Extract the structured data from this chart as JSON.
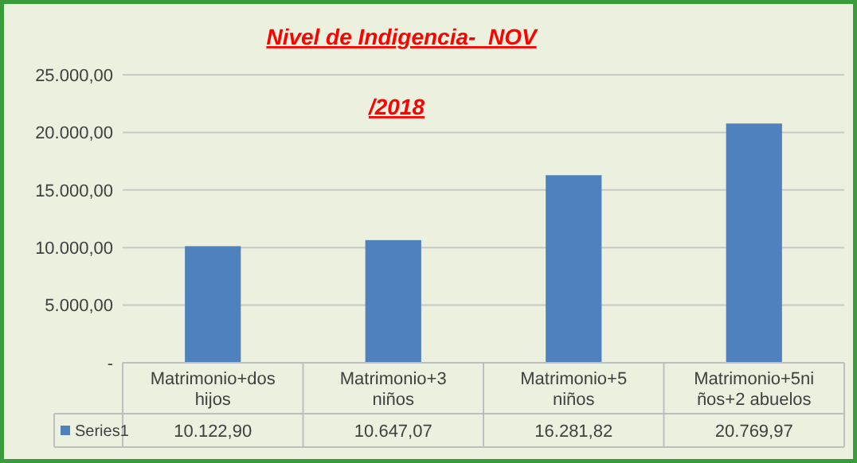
{
  "chart_data": {
    "type": "bar",
    "title": "Nivel de Indigencia-  NOV\n/2018",
    "categories": [
      "Matrimonio+dos hijos",
      "Matrimonio+3 niños",
      "Matrimonio+5 niños",
      "Matrimonio+5niños+2 abuelos"
    ],
    "series": [
      {
        "name": "Series1",
        "color": "#4f81bd",
        "values": [
          10122.9,
          10647.07,
          16281.82,
          20769.97
        ],
        "value_labels": [
          "10.122,90",
          "10.647,07",
          "16.281,82",
          "20.769,97"
        ]
      }
    ],
    "ylim": [
      0,
      25000
    ],
    "yticks": [
      {
        "value": 0,
        "label": "-"
      },
      {
        "value": 5000,
        "label": "5.000,00"
      },
      {
        "value": 10000,
        "label": "10.000,00"
      },
      {
        "value": 15000,
        "label": "15.000,00"
      },
      {
        "value": 20000,
        "label": "20.000,00"
      },
      {
        "value": 25000,
        "label": "25.000,00"
      }
    ],
    "grid": "y",
    "data_labels": true,
    "legend": "bottom"
  }
}
